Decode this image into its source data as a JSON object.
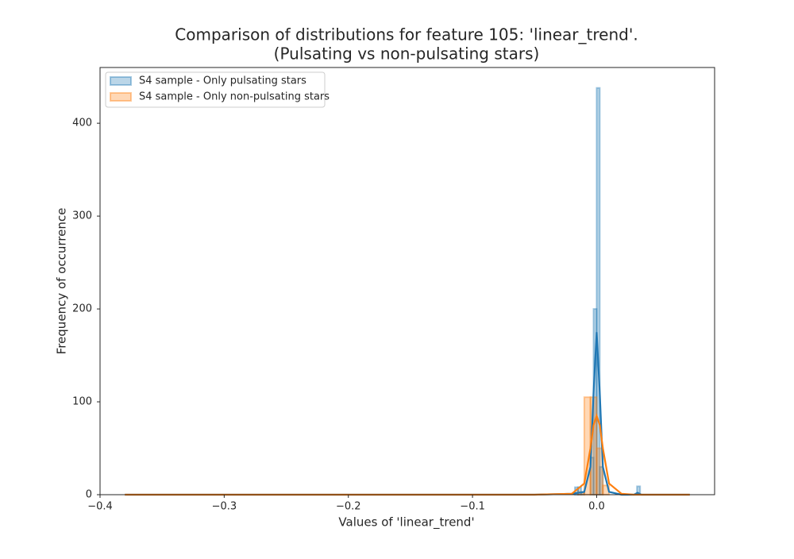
{
  "chart_data": {
    "type": "histogram",
    "title": [
      "Comparison of distributions for feature 105: 'linear_trend'.",
      "(Pulsating vs non-pulsating stars)"
    ],
    "x_label": "Values of 'linear_trend'",
    "y_label": "Frequency of occurrence",
    "xlim": [
      -0.4,
      0.095
    ],
    "ylim": [
      0,
      460
    ],
    "xticks": [
      {
        "value": -0.4,
        "label": "−0.4"
      },
      {
        "value": -0.3,
        "label": "−0.3"
      },
      {
        "value": -0.2,
        "label": "−0.2"
      },
      {
        "value": -0.1,
        "label": "−0.1"
      },
      {
        "value": 0,
        "label": "0.0"
      }
    ],
    "yticks": [
      0,
      100,
      200,
      300,
      400
    ],
    "legend": "upper left",
    "grid": false,
    "series": [
      {
        "name": "S4 sample - Only pulsating stars",
        "color": "#1f77b4",
        "bins": [
          -0.0175,
          -0.015,
          -0.0125,
          -0.01,
          -0.0075,
          -0.005,
          -0.0025,
          0,
          0.0025,
          0.005,
          0.0075,
          0.01,
          0.0125,
          0.015,
          0.0175,
          0.02,
          0.0225,
          0.025,
          0.0275,
          0.03,
          0.0325,
          0.035
        ],
        "counts": [
          8,
          8,
          3,
          0,
          0,
          40,
          200,
          438,
          30,
          0,
          0,
          0,
          0,
          0,
          0,
          0,
          0,
          0,
          0,
          0,
          9
        ],
        "kde": {
          "x": [
            -0.38,
            -0.05,
            -0.02,
            -0.01,
            -0.005,
            -0.0025,
            0,
            0.0025,
            0.005,
            0.01,
            0.02,
            0.03,
            0.033,
            0.036,
            0.05,
            0.075
          ],
          "y": [
            0,
            0,
            1,
            3,
            30,
            110,
            175,
            110,
            30,
            3,
            0,
            0,
            2,
            0,
            0,
            0
          ]
        }
      },
      {
        "name": "S4 sample - Only non-pulsating stars",
        "color": "#ff7f0e",
        "bins": [
          -0.015,
          -0.01,
          -0.005,
          0,
          0.005,
          0.01
        ],
        "counts": [
          3,
          105,
          105,
          50,
          10
        ],
        "kde": {
          "x": [
            -0.38,
            -0.05,
            -0.02,
            -0.01,
            -0.005,
            -0.0025,
            0,
            0.0025,
            0.005,
            0.01,
            0.02,
            0.03,
            0.05,
            0.075
          ],
          "y": [
            0,
            0,
            1,
            12,
            50,
            75,
            85,
            75,
            50,
            12,
            1,
            0,
            0,
            0
          ]
        }
      }
    ]
  }
}
